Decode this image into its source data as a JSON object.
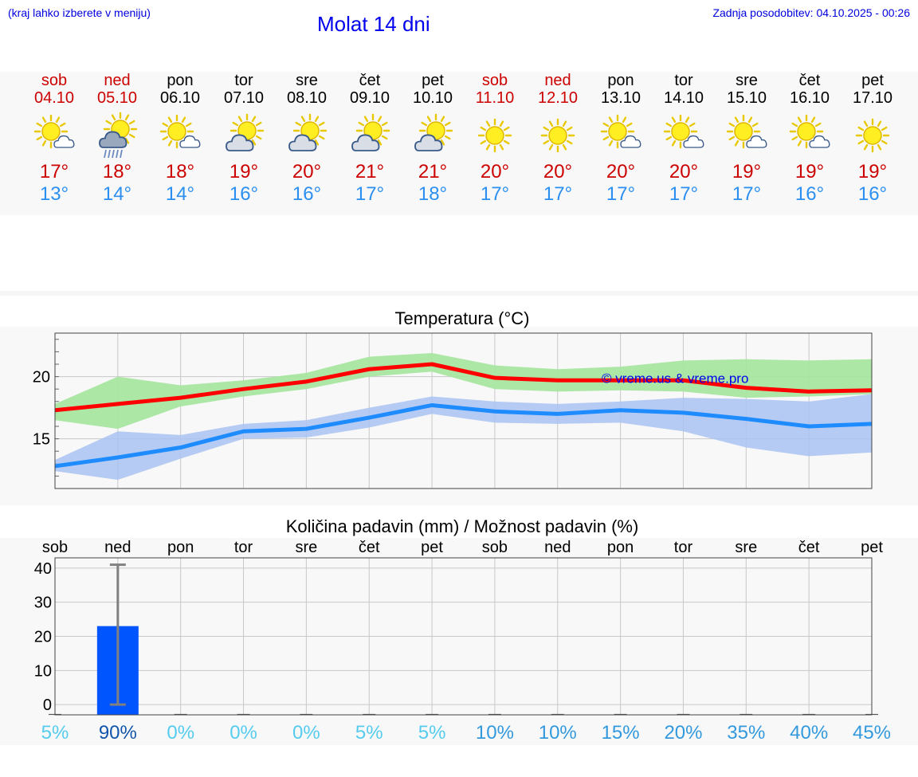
{
  "header": {
    "note": "(kraj lahko izberete v meniju)",
    "title": "Molat 14 dni",
    "last_update": "Zadnja posodobitev: 04.10.2025 - 00:26"
  },
  "days": [
    {
      "name": "sob",
      "date": "04.10",
      "weekend": true,
      "icon": "sun-cloud-icon",
      "max": "17°",
      "min": "13°"
    },
    {
      "name": "ned",
      "date": "05.10",
      "weekend": true,
      "icon": "sun-rain-cloud-icon",
      "max": "18°",
      "min": "14°"
    },
    {
      "name": "pon",
      "date": "06.10",
      "weekend": false,
      "icon": "sun-cloud-icon",
      "max": "18°",
      "min": "14°"
    },
    {
      "name": "tor",
      "date": "07.10",
      "weekend": false,
      "icon": "sun-big-cloud-icon",
      "max": "19°",
      "min": "16°"
    },
    {
      "name": "sre",
      "date": "08.10",
      "weekend": false,
      "icon": "sun-big-cloud-icon",
      "max": "20°",
      "min": "16°"
    },
    {
      "name": "čet",
      "date": "09.10",
      "weekend": false,
      "icon": "sun-big-cloud-icon",
      "max": "21°",
      "min": "17°"
    },
    {
      "name": "pet",
      "date": "10.10",
      "weekend": false,
      "icon": "sun-big-cloud-icon",
      "max": "21°",
      "min": "18°"
    },
    {
      "name": "sob",
      "date": "11.10",
      "weekend": true,
      "icon": "sun-icon",
      "max": "20°",
      "min": "17°"
    },
    {
      "name": "ned",
      "date": "12.10",
      "weekend": true,
      "icon": "sun-icon",
      "max": "20°",
      "min": "17°"
    },
    {
      "name": "pon",
      "date": "13.10",
      "weekend": false,
      "icon": "sun-cloud-icon",
      "max": "20°",
      "min": "17°"
    },
    {
      "name": "tor",
      "date": "14.10",
      "weekend": false,
      "icon": "sun-cloud-icon",
      "max": "20°",
      "min": "17°"
    },
    {
      "name": "sre",
      "date": "15.10",
      "weekend": false,
      "icon": "sun-cloud-icon",
      "max": "19°",
      "min": "17°"
    },
    {
      "name": "čet",
      "date": "16.10",
      "weekend": false,
      "icon": "sun-cloud-icon",
      "max": "19°",
      "min": "16°"
    },
    {
      "name": "pet",
      "date": "17.10",
      "weekend": false,
      "icon": "sun-icon",
      "max": "19°",
      "min": "16°"
    }
  ],
  "colors": {
    "max_line": "#ff0000",
    "min_line": "#1e8cff",
    "max_band": "#a8e6a0",
    "min_band": "#a9c3f2",
    "overlap_band": "#80c8a8",
    "precip_bar": "#0055ff",
    "error_bar": "#808080",
    "prob_low": "#55ccee",
    "prob_high": "#1155aa",
    "prob_mid": "#3399dd"
  },
  "chart_data": [
    {
      "type": "line",
      "title": "Temperatura (°C)",
      "categories": [
        "sob",
        "ned",
        "pon",
        "tor",
        "sre",
        "čet",
        "pet",
        "sob",
        "ned",
        "pon",
        "tor",
        "sre",
        "čet",
        "pet"
      ],
      "series": [
        {
          "values": [
            17.3,
            17.8,
            18.3,
            19.0,
            19.6,
            20.6,
            21.0,
            19.9,
            19.7,
            19.7,
            19.7,
            19.1,
            18.8,
            18.9
          ]
        },
        {
          "values": [
            12.8,
            13.5,
            14.3,
            15.6,
            15.8,
            16.7,
            17.7,
            17.2,
            17.0,
            17.3,
            17.1,
            16.6,
            16.0,
            16.2
          ]
        }
      ],
      "bands": [
        {
          "upper": [
            17.8,
            20.0,
            19.3,
            19.7,
            20.3,
            21.6,
            21.9,
            20.9,
            20.6,
            20.8,
            21.3,
            21.4,
            21.3,
            21.4
          ],
          "lower": [
            16.5,
            15.8,
            17.6,
            18.4,
            19.0,
            20.0,
            20.4,
            19.0,
            18.8,
            18.9,
            18.8,
            18.3,
            18.4,
            18.6
          ]
        },
        {
          "upper": [
            13.3,
            15.6,
            15.3,
            16.2,
            16.5,
            17.5,
            18.4,
            18.0,
            17.8,
            18.0,
            18.3,
            18.2,
            18.0,
            18.6
          ],
          "lower": [
            12.4,
            11.7,
            13.4,
            15.0,
            15.1,
            15.9,
            17.0,
            16.3,
            16.2,
            16.3,
            15.6,
            14.3,
            13.6,
            13.9
          ]
        }
      ],
      "xlim": [
        0,
        13
      ],
      "ylim": [
        11.0,
        23.5
      ],
      "yticks": [
        15,
        20
      ],
      "annotation": "© vreme.us & vreme.pro",
      "grid": true
    },
    {
      "type": "bar",
      "title": "Količina padavin (mm) / Možnost padavin (%)",
      "categories": [
        "sob",
        "ned",
        "pon",
        "tor",
        "sre",
        "čet",
        "pet",
        "sob",
        "ned",
        "pon",
        "tor",
        "sre",
        "čet",
        "pet"
      ],
      "values": [
        0,
        23,
        0,
        0,
        0,
        0,
        0,
        0,
        0,
        0,
        0,
        0,
        0,
        0
      ],
      "error_high": [
        0,
        41,
        0,
        0,
        0,
        0,
        0,
        0,
        0,
        0,
        0,
        0,
        0,
        0
      ],
      "error_low": [
        0,
        0,
        0,
        0,
        0,
        0,
        0,
        0,
        0,
        0,
        0,
        0,
        0,
        0
      ],
      "probability": [
        "5%",
        "90%",
        "0%",
        "0%",
        "0%",
        "5%",
        "5%",
        "10%",
        "10%",
        "15%",
        "20%",
        "35%",
        "40%",
        "45%"
      ],
      "probability_values": [
        5,
        90,
        0,
        0,
        0,
        5,
        5,
        10,
        10,
        15,
        20,
        35,
        40,
        45
      ],
      "ylim": [
        -3,
        43
      ],
      "yticks": [
        0,
        10,
        20,
        30,
        40
      ],
      "grid": true
    }
  ]
}
